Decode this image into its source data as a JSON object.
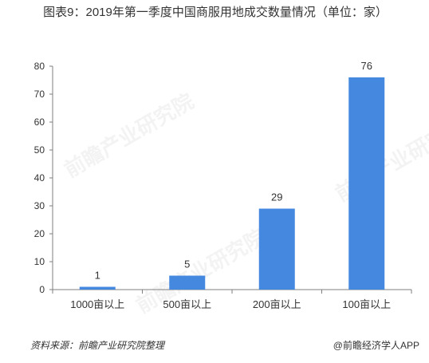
{
  "chart_data": {
    "type": "bar",
    "title": "图表9：2019年第一季度中国商服用地成交数量情况（单位：家）",
    "categories": [
      "1000亩以上",
      "500亩以上",
      "200亩以上",
      "100亩以上"
    ],
    "values": [
      1,
      5,
      29,
      76
    ],
    "data_labels": [
      "1",
      "5",
      "29",
      "76"
    ],
    "ylim": [
      0,
      80
    ],
    "yticks": [
      0,
      10,
      20,
      30,
      40,
      50,
      60,
      70,
      80
    ],
    "xlabel": "",
    "ylabel": "",
    "bar_color": "#4488e0",
    "grid": false,
    "legend": "none"
  },
  "footer": {
    "source": "资料来源：前瞻产业研究院整理",
    "brand": "@前瞻经济学人APP"
  },
  "watermark": {
    "text": "前瞻产业研究院"
  }
}
